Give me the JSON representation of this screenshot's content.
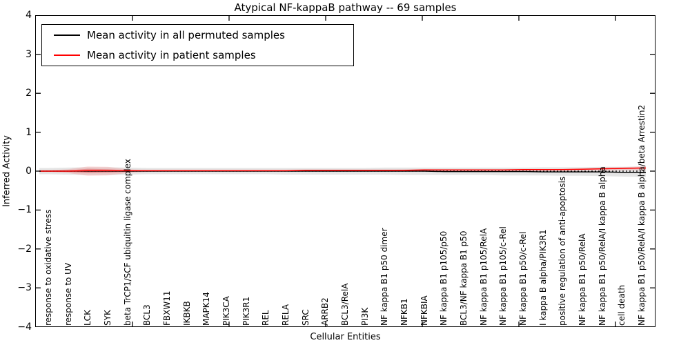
{
  "chart_data": {
    "type": "line",
    "title": "Atypical NF-kappaB pathway -- 69 samples",
    "xlabel": "Cellular Entities",
    "ylabel": "Inferred Activity",
    "ylim": [
      -4,
      4
    ],
    "yticks": [
      -4,
      -3,
      -2,
      -1,
      0,
      1,
      2,
      3,
      4
    ],
    "grid": false,
    "legend_position": "upper left",
    "zero_line": {
      "y": 0,
      "style": "dotted",
      "color": "#000000"
    },
    "categories": [
      "response to oxidative stress",
      "response to UV",
      "LCK",
      "SYK",
      "beta TrCP1/SCF ubiquitin ligase complex",
      "BCL3",
      "FBXW11",
      "IKBKB",
      "MAPK14",
      "PIK3CA",
      "PIK3R1",
      "REL",
      "RELA",
      "SRC",
      "ARRB2",
      "BCL3/RelA",
      "PI3K",
      "NF kappa B1 p50 dimer",
      "NFKB1",
      "NFKBIA",
      "NF kappa B1 p105/p50",
      "BCL3/NF kappa B1 p50",
      "NF kappa B1 p105/RelA",
      "NF kappa B1 p105/c-Rel",
      "NF kappa B1 p50/c-Rel",
      "I kappa B alpha/PIK3R1",
      "positive regulation of anti-apoptosis",
      "NF kappa B1 p50/RelA",
      "NF kappa B1 p50/RelA/I kappa B alpha",
      "cell death",
      "NF kappa B1 p50/RelA/I kappa B alpha/beta Arrestin2"
    ],
    "series": [
      {
        "name": "Mean activity in all permuted samples",
        "color": "#000000",
        "values": [
          0,
          0,
          0,
          0,
          0,
          0,
          0,
          0,
          0,
          0,
          0,
          0,
          0,
          0,
          0,
          0,
          0,
          0,
          0,
          0,
          -0.01,
          -0.01,
          -0.01,
          -0.01,
          -0.01,
          -0.02,
          -0.02,
          -0.02,
          -0.02,
          -0.03,
          -0.03
        ]
      },
      {
        "name": "Mean activity in patient samples",
        "color": "#ff0000",
        "values": [
          0,
          0,
          0.01,
          0.01,
          0.01,
          0.01,
          0.01,
          0.01,
          0.01,
          0.01,
          0.01,
          0.01,
          0.01,
          0.02,
          0.02,
          0.02,
          0.02,
          0.02,
          0.02,
          0.03,
          0.03,
          0.03,
          0.03,
          0.03,
          0.04,
          0.04,
          0.04,
          0.05,
          0.06,
          0.07,
          0.08
        ]
      }
    ],
    "bands": [
      {
        "name": "permuted samples spread",
        "color": "rgba(110,110,110,0.18)",
        "upper": [
          0.08,
          0.09,
          0.1,
          0.1,
          0.09,
          0.08,
          0.08,
          0.08,
          0.08,
          0.08,
          0.08,
          0.08,
          0.08,
          0.08,
          0.08,
          0.08,
          0.08,
          0.09,
          0.09,
          0.09,
          0.09,
          0.09,
          0.09,
          0.09,
          0.09,
          0.1,
          0.1,
          0.1,
          0.11,
          0.11,
          0.12
        ],
        "lower": [
          -0.08,
          -0.09,
          -0.1,
          -0.1,
          -0.09,
          -0.08,
          -0.08,
          -0.08,
          -0.08,
          -0.08,
          -0.08,
          -0.08,
          -0.09,
          -0.09,
          -0.09,
          -0.09,
          -0.09,
          -0.09,
          -0.1,
          -0.1,
          -0.1,
          -0.1,
          -0.1,
          -0.11,
          -0.11,
          -0.11,
          -0.12,
          -0.12,
          -0.13,
          -0.14,
          -0.15
        ]
      },
      {
        "name": "patient samples spread outer",
        "color": "rgba(255,0,0,0.13)",
        "upper": [
          0.02,
          0.05,
          0.12,
          0.11,
          0.05,
          0.02,
          0.02,
          0.02,
          0.02,
          0.02,
          0.02,
          0.02,
          0.02,
          0.03,
          0.03,
          0.03,
          0.03,
          0.03,
          0.04,
          0.05,
          0.04,
          0.04,
          0.04,
          0.04,
          0.05,
          0.05,
          0.06,
          0.07,
          0.09,
          0.1,
          0.12
        ],
        "lower": [
          -0.02,
          -0.05,
          -0.12,
          -0.11,
          -0.05,
          -0.02,
          -0.01,
          -0.01,
          -0.01,
          -0.01,
          -0.01,
          -0.01,
          -0.01,
          -0.01,
          -0.01,
          -0.01,
          -0.01,
          -0.01,
          -0.01,
          -0.01,
          0,
          0,
          0,
          0,
          0,
          0,
          0,
          0.01,
          0.01,
          0.02,
          0.02
        ]
      },
      {
        "name": "patient samples spread inner",
        "color": "rgba(225,0,0,0.25)",
        "upper": [
          0.01,
          0.02,
          0.06,
          0.05,
          0.02,
          0.01,
          0.01,
          0.01,
          0.01,
          0.01,
          0.01,
          0.01,
          0.01,
          0.02,
          0.02,
          0.02,
          0.02,
          0.02,
          0.02,
          0.03,
          0.03,
          0.03,
          0.03,
          0.03,
          0.04,
          0.04,
          0.05,
          0.05,
          0.07,
          0.08,
          0.09
        ],
        "lower": [
          -0.01,
          -0.02,
          -0.05,
          -0.04,
          -0.02,
          0,
          0,
          0,
          0,
          0,
          0,
          0,
          0,
          0.01,
          0.01,
          0.01,
          0.01,
          0.01,
          0.01,
          0.01,
          0.02,
          0.02,
          0.02,
          0.02,
          0.02,
          0.03,
          0.03,
          0.04,
          0.05,
          0.06,
          0.07
        ]
      }
    ]
  },
  "legend": {
    "items": [
      {
        "label": "Mean activity in all permuted samples",
        "color": "#000000"
      },
      {
        "label": "Mean activity in patient samples",
        "color": "#ff0000"
      }
    ]
  },
  "colors": {
    "accent_red": "#ff0000",
    "axis_black": "#000000",
    "background": "#ffffff"
  }
}
